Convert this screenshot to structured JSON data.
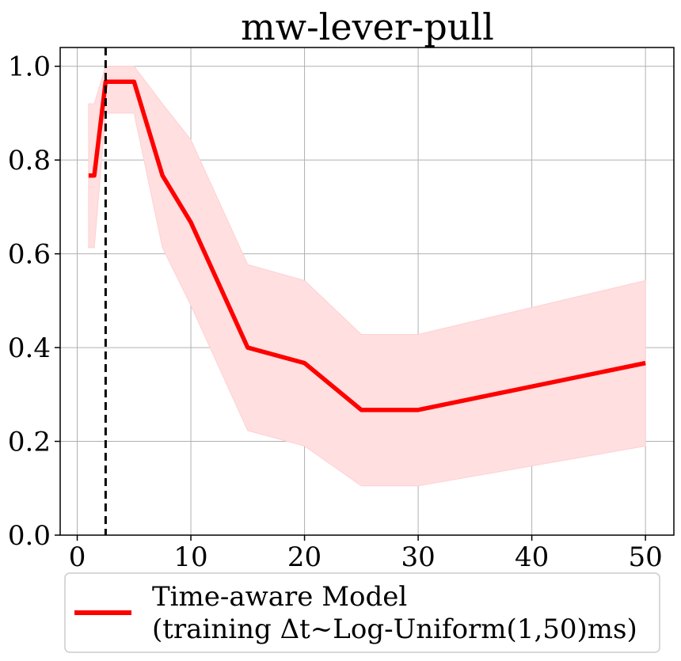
{
  "chart_data": {
    "type": "line",
    "title": "mw-lever-pull",
    "xlabel": "",
    "ylabel": "",
    "xlim": [
      -1.5,
      52.5
    ],
    "ylim": [
      0.0,
      1.04
    ],
    "xticks": [
      0,
      10,
      20,
      30,
      40,
      50
    ],
    "xtick_labels": [
      "0",
      "10",
      "20",
      "30",
      "40",
      "50"
    ],
    "yticks": [
      0.0,
      0.2,
      0.4,
      0.6,
      0.8,
      1.0
    ],
    "ytick_labels": [
      "0.0",
      "0.2",
      "0.4",
      "0.6",
      "0.8",
      "1.0"
    ],
    "grid": true,
    "series": [
      {
        "name": "Time-aware Model (training Δt~Log-Uniform(1,50)ms)",
        "color": "#ff0000",
        "band_color": "#ffdfe0",
        "x": [
          1,
          1.5,
          2.5,
          5,
          7.5,
          10,
          15,
          20,
          25,
          30,
          50
        ],
        "y": [
          0.767,
          0.767,
          0.967,
          0.967,
          0.767,
          0.667,
          0.4,
          0.367,
          0.267,
          0.267,
          0.367
        ],
        "lower": [
          0.613,
          0.613,
          0.9,
          0.9,
          0.613,
          0.49,
          0.223,
          0.19,
          0.105,
          0.105,
          0.19
        ],
        "upper": [
          0.92,
          0.92,
          1.0,
          1.0,
          0.92,
          0.843,
          0.577,
          0.543,
          0.428,
          0.428,
          0.543
        ]
      }
    ],
    "vlines": [
      {
        "x": 2.5,
        "style": "dashed",
        "color": "#000000"
      }
    ],
    "legend": {
      "placement": "bottom-outside",
      "line1": "Time-aware Model",
      "line2": "(training Δt~Log-Uniform(1,50)ms)"
    }
  }
}
